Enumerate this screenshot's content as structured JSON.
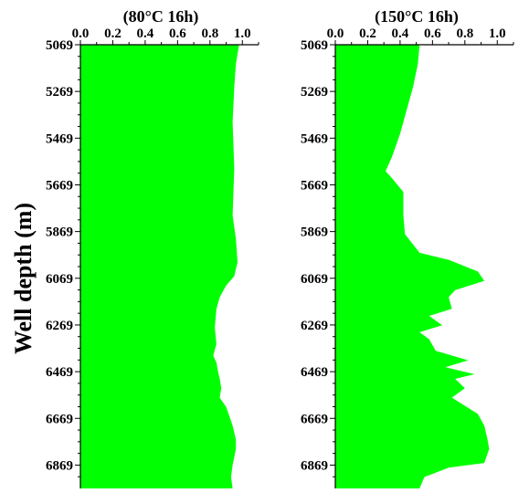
{
  "chart_data": [
    {
      "type": "area",
      "orientation": "vertical-depth",
      "title": "(80°C 16h)",
      "ylabel": "Well depth (m)",
      "xlim": [
        0.0,
        1.1
      ],
      "xticks": [
        "0.0",
        "0.2",
        "0.4",
        "0.6",
        "0.8",
        "1.0"
      ],
      "ylim": [
        5069,
        6969
      ],
      "yticks": [
        "5069",
        "5269",
        "5469",
        "5669",
        "5869",
        "6069",
        "6269",
        "6469",
        "6669",
        "6869"
      ],
      "fill_color": "#00ff00",
      "depth": [
        5069,
        5150,
        5250,
        5400,
        5600,
        5800,
        5900,
        6000,
        6060,
        6100,
        6150,
        6200,
        6280,
        6350,
        6400,
        6430,
        6470,
        6500,
        6540,
        6580,
        6620,
        6660,
        6700,
        6760,
        6800,
        6869,
        6920,
        6969
      ],
      "values": [
        0.98,
        0.96,
        0.95,
        0.94,
        0.95,
        0.94,
        0.96,
        0.97,
        0.95,
        0.9,
        0.86,
        0.84,
        0.83,
        0.84,
        0.82,
        0.84,
        0.85,
        0.86,
        0.87,
        0.86,
        0.9,
        0.92,
        0.94,
        0.96,
        0.96,
        0.94,
        0.93,
        0.94
      ]
    },
    {
      "type": "area",
      "orientation": "vertical-depth",
      "title": "(150°C 16h)",
      "ylabel": "",
      "xlim": [
        0.0,
        1.1
      ],
      "xticks": [
        "0.0",
        "0.2",
        "0.4",
        "0.6",
        "0.8",
        "1.0"
      ],
      "ylim": [
        5069,
        6969
      ],
      "yticks": [
        "5069",
        "5269",
        "5469",
        "5669",
        "5869",
        "6069",
        "6269",
        "6469",
        "6669",
        "6869"
      ],
      "fill_color": "#00ff00",
      "depth": [
        5069,
        5150,
        5250,
        5350,
        5450,
        5550,
        5610,
        5640,
        5700,
        5800,
        5880,
        5960,
        5990,
        6040,
        6080,
        6120,
        6150,
        6200,
        6230,
        6270,
        6300,
        6330,
        6380,
        6420,
        6450,
        6480,
        6500,
        6540,
        6580,
        6650,
        6700,
        6760,
        6800,
        6860,
        6880,
        6920,
        6969
      ],
      "values": [
        0.52,
        0.51,
        0.48,
        0.44,
        0.4,
        0.35,
        0.31,
        0.35,
        0.42,
        0.42,
        0.43,
        0.52,
        0.7,
        0.88,
        0.92,
        0.74,
        0.7,
        0.72,
        0.58,
        0.66,
        0.52,
        0.58,
        0.62,
        0.82,
        0.68,
        0.86,
        0.74,
        0.8,
        0.72,
        0.88,
        0.92,
        0.94,
        0.95,
        0.92,
        0.7,
        0.55,
        0.52
      ]
    }
  ]
}
